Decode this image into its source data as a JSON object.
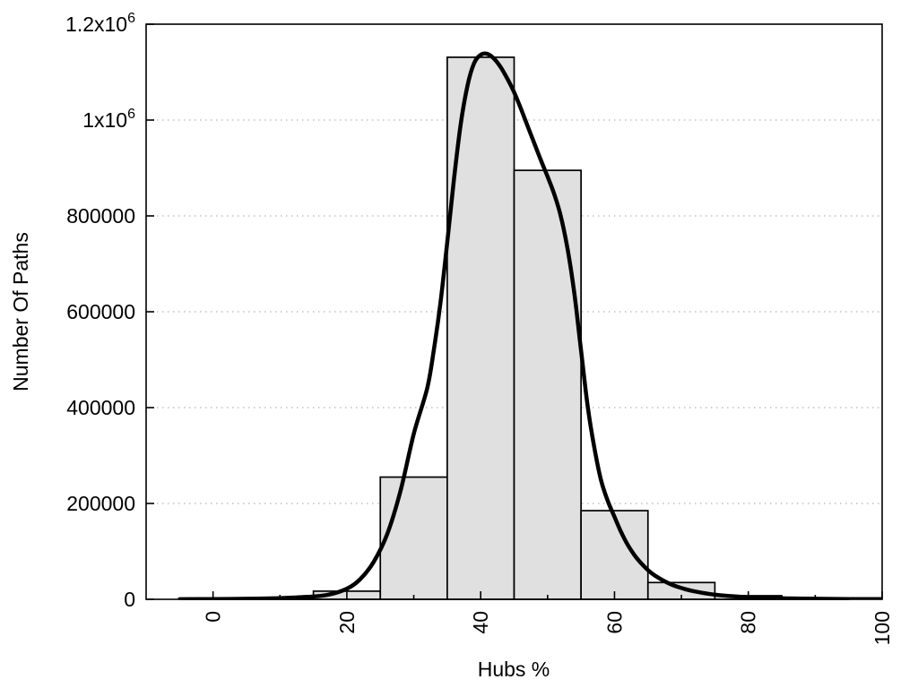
{
  "chart_data": {
    "type": "bar",
    "subtype": "histogram-with-fit-curve",
    "title": "",
    "xlabel": "Hubs %",
    "ylabel": "Number Of Paths",
    "xlim": [
      -10,
      100
    ],
    "ylim": [
      0,
      1200000
    ],
    "grid": "horizontal-dotted",
    "legend": "none",
    "x_major_ticks": [
      {
        "value": 0,
        "label": "0"
      },
      {
        "value": 20,
        "label": "20"
      },
      {
        "value": 40,
        "label": "40"
      },
      {
        "value": 60,
        "label": "60"
      },
      {
        "value": 80,
        "label": "80"
      },
      {
        "value": 100,
        "label": "100"
      }
    ],
    "x_minor_ticks": [
      10,
      30,
      50,
      70,
      90
    ],
    "y_ticks": [
      {
        "value": 0,
        "label": "0",
        "sup": ""
      },
      {
        "value": 200000,
        "label": "200000",
        "sup": ""
      },
      {
        "value": 400000,
        "label": "400000",
        "sup": ""
      },
      {
        "value": 600000,
        "label": "600000",
        "sup": ""
      },
      {
        "value": 800000,
        "label": "800000",
        "sup": ""
      },
      {
        "value": 1000000,
        "label": "1x10",
        "sup": "6"
      },
      {
        "value": 1200000,
        "label": "1.2x10",
        "sup": "6"
      }
    ],
    "bars": {
      "bin_width": 10,
      "centers": [
        0,
        10,
        20,
        30,
        40,
        50,
        60,
        70,
        80,
        90,
        100
      ],
      "values": [
        800,
        3000,
        17000,
        255000,
        1131000,
        895000,
        185000,
        35000,
        7500,
        1000,
        0
      ]
    },
    "fit_curve": {
      "x": [
        -5,
        0,
        5,
        10,
        14,
        17,
        20,
        22,
        24,
        26,
        28,
        30,
        32,
        33,
        34,
        35,
        36,
        37,
        38,
        39,
        40,
        41,
        42,
        43,
        44,
        45,
        46,
        47,
        48,
        49,
        50,
        51,
        52,
        53,
        54,
        55,
        56,
        57,
        58,
        59,
        60,
        61,
        62,
        63,
        64,
        65,
        66,
        68,
        70,
        72,
        74,
        76,
        78,
        80,
        83,
        86,
        90,
        95,
        100
      ],
      "y": [
        200,
        500,
        1100,
        2500,
        5000,
        9000,
        22000,
        42000,
        78000,
        135000,
        225000,
        345000,
        440000,
        520000,
        620000,
        745000,
        875000,
        990000,
        1070000,
        1118000,
        1136000,
        1138000,
        1128000,
        1110000,
        1086000,
        1058000,
        1024000,
        988000,
        952000,
        916000,
        882000,
        845000,
        798000,
        730000,
        638000,
        520000,
        402000,
        315000,
        248000,
        205000,
        172000,
        140000,
        113000,
        92000,
        75000,
        61000,
        50000,
        34000,
        23500,
        16500,
        11500,
        8200,
        5900,
        4400,
        2900,
        1900,
        1100,
        600,
        350
      ],
      "peak": {
        "x": 40.5,
        "y": 1138000
      }
    },
    "colors": {
      "background": "#ffffff",
      "bar_fill": "#e0e0e0",
      "bar_stroke": "#000000",
      "curve": "#000000",
      "grid": "#b5b5b5",
      "axis": "#000000",
      "text": "#000000"
    }
  }
}
